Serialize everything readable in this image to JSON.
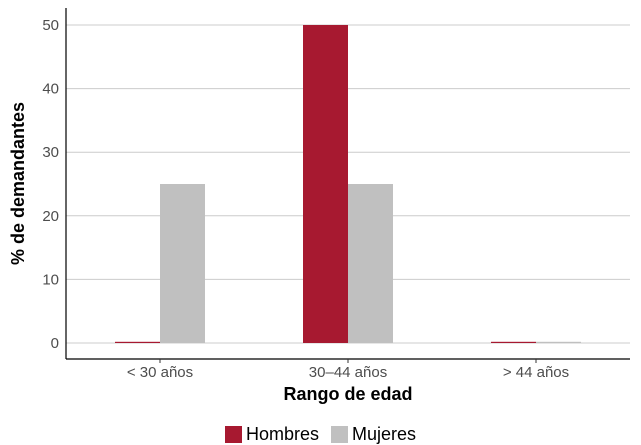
{
  "chart_data": {
    "type": "bar",
    "categories": [
      "< 30 años",
      "30–44 años",
      "> 44 años"
    ],
    "series": [
      {
        "name": "Hombres",
        "values": [
          0,
          50,
          0
        ],
        "color": "#a71930"
      },
      {
        "name": "Mujeres",
        "values": [
          25,
          25,
          0
        ],
        "color": "#c0c0c0"
      }
    ],
    "title": "",
    "xlabel": "Rango de edad",
    "ylabel": "% de demandantes",
    "ylim": [
      0,
      50
    ],
    "yticks": [
      "0",
      "10",
      "20",
      "30",
      "40",
      "50"
    ],
    "grid": "horizontal",
    "legend_position": "bottom"
  }
}
